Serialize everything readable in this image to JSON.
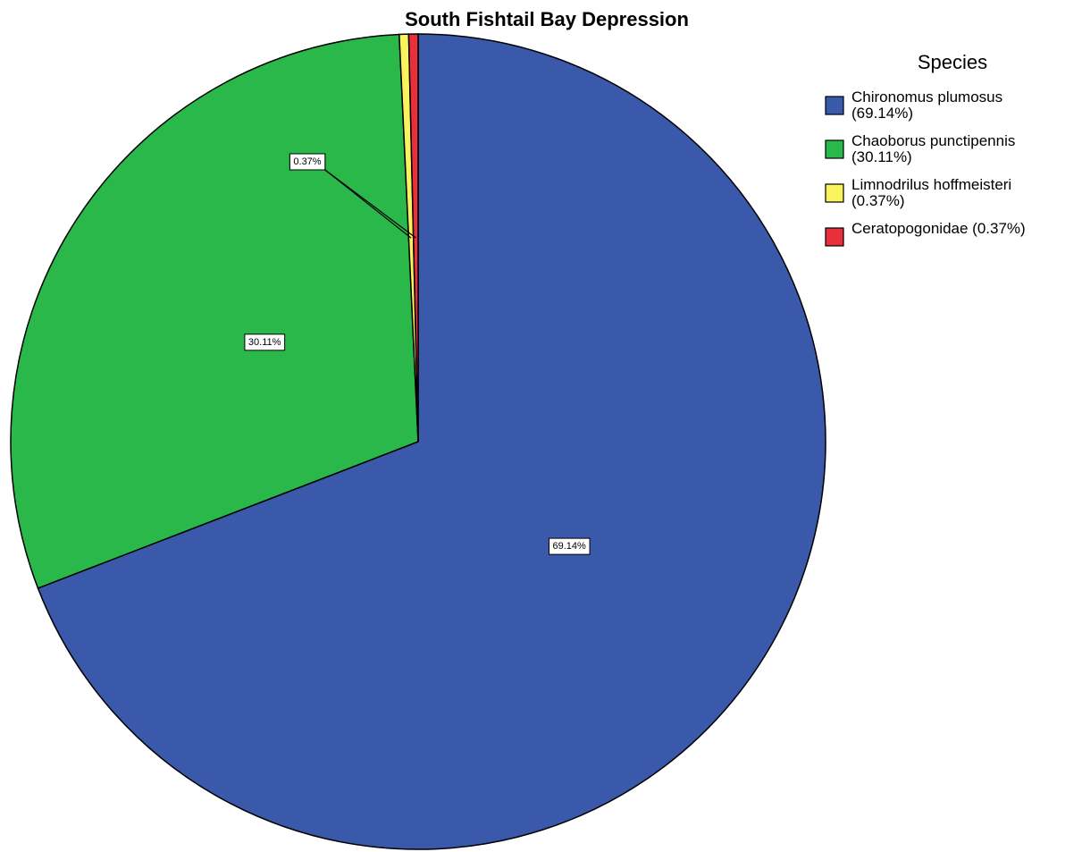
{
  "chart_data": {
    "type": "pie",
    "title": "South Fishtail Bay Depression",
    "legend_title": "Species",
    "legend_position": "right",
    "start_angle_deg": 0,
    "direction": "clockwise",
    "slices": [
      {
        "name": "Chironomus plumosus",
        "value": 69.14,
        "label": "69.14%",
        "legend_lines": [
          "Chironomus plumosus",
          "(69.14%)"
        ],
        "color": "#3A59AB"
      },
      {
        "name": "Chaoborus punctipennis",
        "value": 30.11,
        "label": "30.11%",
        "legend_lines": [
          "Chaoborus punctipennis",
          "(30.11%)"
        ],
        "color": "#2BB84A"
      },
      {
        "name": "Limnodrilus hoffmeisteri",
        "value": 0.37,
        "label": "0.37%",
        "legend_lines": [
          "Limnodrilus hoffmeisteri",
          "(0.37%)"
        ],
        "color": "#FAF35D"
      },
      {
        "name": "Ceratopogonidae",
        "value": 0.37,
        "label": "0.37%",
        "legend_lines": [
          "Ceratopogonidae (0.37%)"
        ],
        "color": "#E8303A"
      }
    ]
  }
}
